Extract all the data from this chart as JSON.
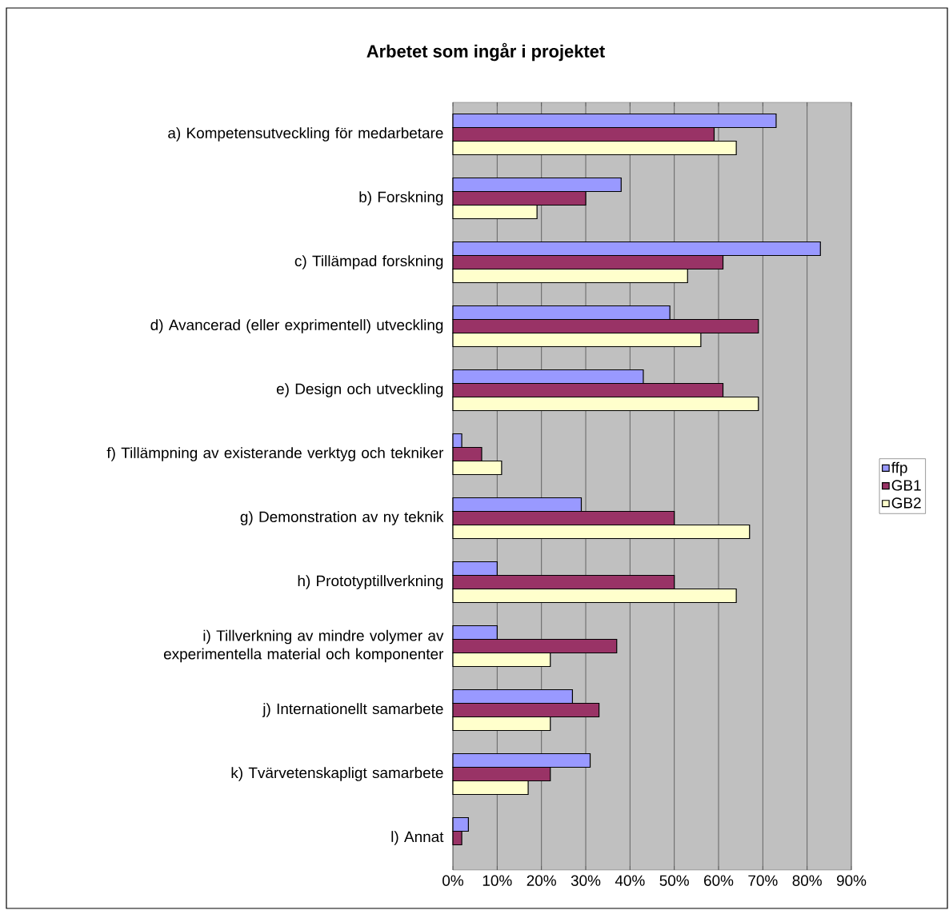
{
  "chart_data": {
    "type": "bar",
    "orientation": "horizontal",
    "title": "Arbetet som ingår i projektet",
    "categories": [
      "a) Kompetensutveckling för medarbetare",
      "b) Forskning",
      "c) Tillämpad forskning",
      "d) Avancerad (eller exprimentell) utveckling",
      "e) Design och utveckling",
      "f) Tillämpning av existerande verktyg och tekniker",
      "g) Demonstration av ny teknik",
      "h) Prototyptillverkning",
      "i) Tillverkning av mindre volymer av experimentella material och komponenter",
      "j) Internationellt samarbete",
      "k) Tvärvetenskapligt samarbete",
      "l) Annat"
    ],
    "series": [
      {
        "name": "ffp",
        "color": "#9999ff",
        "values": [
          73,
          38,
          83,
          49,
          43,
          2,
          29,
          10,
          10,
          27,
          31,
          3.5
        ]
      },
      {
        "name": "GB1",
        "color": "#993366",
        "values": [
          59,
          30,
          61,
          69,
          61,
          6.5,
          50,
          50,
          37,
          33,
          22,
          2
        ]
      },
      {
        "name": "GB2",
        "color": "#ffffcc",
        "values": [
          64,
          19,
          53,
          56,
          69,
          11,
          67,
          64,
          22,
          22,
          17,
          null
        ]
      }
    ],
    "xlim": [
      0,
      90
    ],
    "xticks": [
      {
        "value": 0,
        "label": "0%"
      },
      {
        "value": 10,
        "label": "10%"
      },
      {
        "value": 20,
        "label": "20%"
      },
      {
        "value": 30,
        "label": "30%"
      },
      {
        "value": 40,
        "label": "40%"
      },
      {
        "value": 50,
        "label": "50%"
      },
      {
        "value": 60,
        "label": "60%"
      },
      {
        "value": 70,
        "label": "70%"
      },
      {
        "value": 80,
        "label": "80%"
      },
      {
        "value": 90,
        "label": "90%"
      }
    ],
    "grid": "x",
    "legend": "right"
  }
}
